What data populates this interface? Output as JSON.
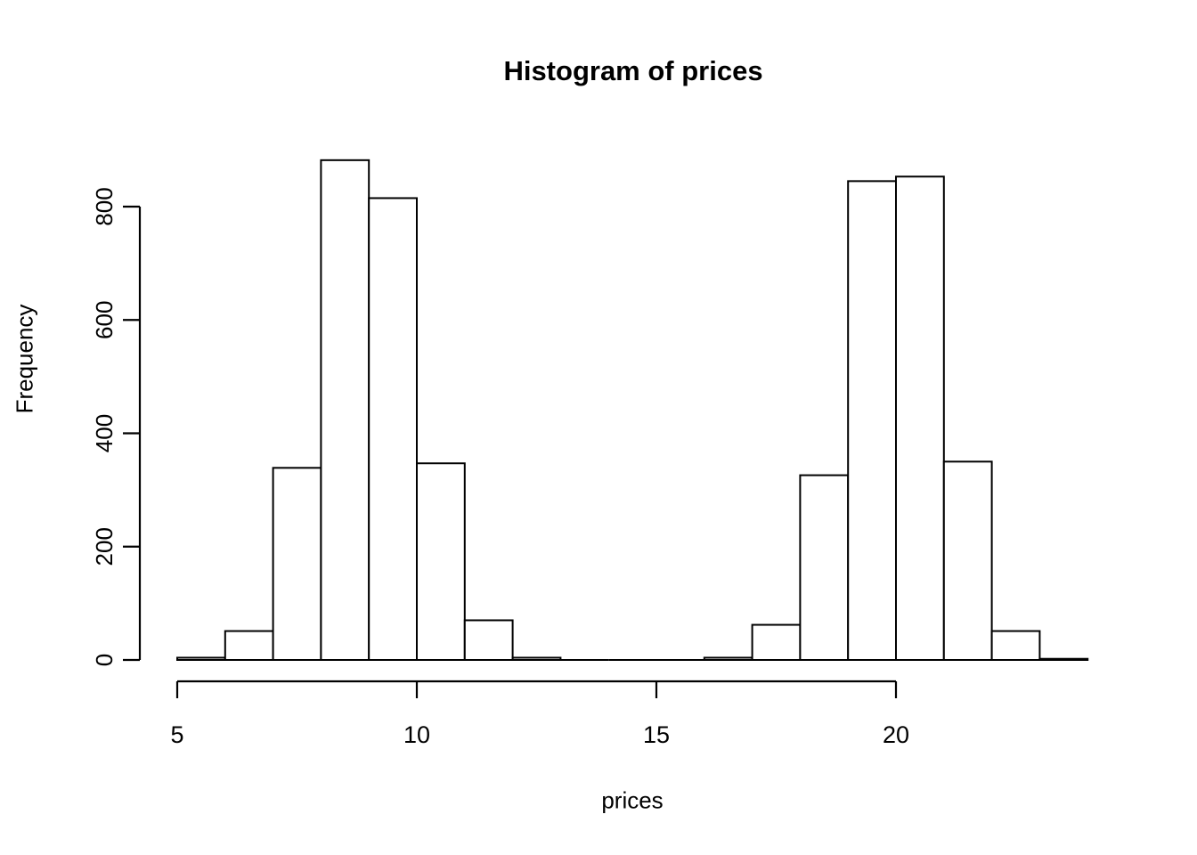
{
  "chart_data": {
    "type": "bar",
    "subtype": "histogram",
    "title": "Histogram of prices",
    "xlabel": "prices",
    "ylabel": "Frequency",
    "bin_breaks": [
      5,
      6,
      7,
      8,
      9,
      10,
      11,
      12,
      13,
      14,
      15,
      16,
      17,
      18,
      19,
      20,
      21,
      22,
      23,
      24
    ],
    "counts": [
      4,
      51,
      339,
      882,
      815,
      347,
      70,
      4,
      0,
      0,
      0,
      4,
      62,
      326,
      845,
      853,
      350,
      51,
      2
    ],
    "x_ticks": [
      5,
      10,
      15,
      20
    ],
    "y_ticks": [
      0,
      200,
      400,
      600,
      800
    ],
    "xlim": [
      5,
      24
    ],
    "ylim": [
      0,
      882
    ],
    "grid": false,
    "legend": false,
    "bar_fill": "#ffffff",
    "bar_stroke": "#000000",
    "axis_color": "#000000",
    "background": "#ffffff"
  }
}
